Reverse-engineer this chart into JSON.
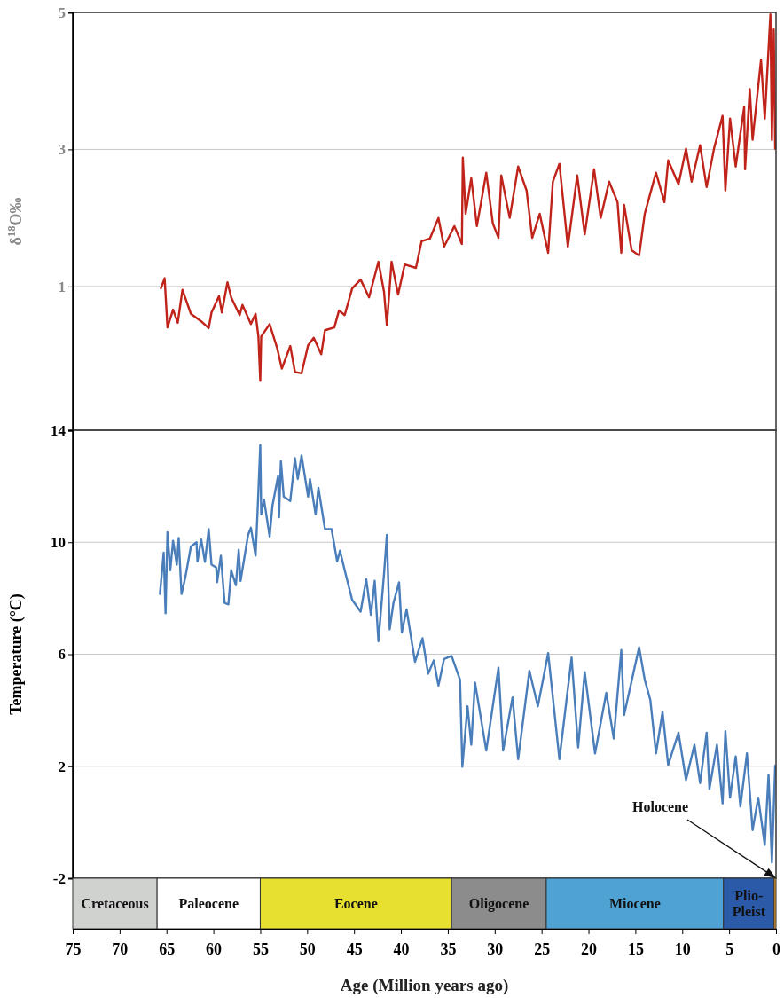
{
  "chart_data": [
    {
      "type": "line",
      "ylabel": "δ$^{18}$O‰",
      "xlim": [
        75,
        0
      ],
      "ylim": [
        -1.1,
        5
      ],
      "yticks": [
        1,
        3,
        5
      ],
      "tick_labels": "y",
      "grid": "y",
      "x": [
        65.6,
        65.2,
        64.9,
        64.3,
        63.8,
        63.3,
        62.4,
        61.3,
        60.5,
        60.2,
        59.4,
        59.1,
        58.5,
        58.1,
        57.2,
        56.9,
        56.0,
        55.5,
        55.2,
        55.0,
        54.9,
        54.0,
        53.2,
        52.7,
        51.8,
        51.3,
        50.6,
        49.9,
        49.3,
        48.5,
        48.1,
        47.1,
        46.6,
        46.0,
        45.2,
        44.3,
        43.4,
        42.4,
        41.8,
        41.5,
        41.0,
        40.3,
        39.6,
        38.4,
        37.8,
        36.9,
        36.0,
        35.4,
        34.3,
        33.5,
        33.4,
        33.1,
        32.5,
        31.9,
        30.9,
        30.2,
        29.6,
        29.3,
        28.4,
        27.5,
        26.6,
        26.0,
        25.2,
        24.3,
        23.8,
        23.1,
        22.2,
        21.2,
        20.4,
        19.4,
        18.7,
        17.8,
        16.9,
        16.5,
        16.2,
        15.4,
        14.6,
        14.0,
        12.8,
        11.9,
        11.5,
        10.4,
        9.6,
        9.0,
        8.1,
        7.4,
        6.6,
        5.7,
        5.4,
        4.9,
        4.3,
        3.4,
        3.3,
        2.8,
        2.5,
        1.6,
        1.2,
        0.6,
        0.44,
        0.24,
        0.09
      ],
      "series": [
        {
          "color": "#c0231a",
          "values": [
            0.97,
            1.12,
            0.4,
            0.66,
            0.47,
            0.95,
            0.6,
            0.49,
            0.39,
            0.62,
            0.86,
            0.62,
            1.06,
            0.84,
            0.58,
            0.73,
            0.45,
            0.6,
            0.27,
            -0.38,
            0.27,
            0.45,
            0.1,
            -0.2,
            0.13,
            -0.25,
            -0.27,
            0.14,
            0.25,
            0.01,
            0.36,
            0.4,
            0.65,
            0.58,
            0.97,
            1.1,
            0.84,
            1.36,
            0.92,
            0.43,
            1.36,
            0.88,
            1.32,
            1.27,
            1.66,
            1.7,
            2.0,
            1.58,
            1.88,
            1.62,
            2.88,
            2.06,
            2.58,
            1.88,
            2.66,
            1.92,
            1.71,
            2.62,
            2.0,
            2.75,
            2.4,
            1.71,
            2.06,
            1.49,
            2.53,
            2.79,
            1.58,
            2.62,
            1.76,
            2.71,
            2.0,
            2.53,
            2.23,
            1.49,
            2.19,
            1.53,
            1.45,
            2.06,
            2.66,
            2.23,
            2.84,
            2.49,
            3.01,
            2.53,
            3.06,
            2.45,
            3.02,
            3.49,
            2.4,
            3.45,
            2.75,
            3.62,
            2.71,
            3.88,
            3.14,
            4.31,
            3.45,
            4.97,
            3.14,
            4.75,
            3.01
          ]
        }
      ]
    },
    {
      "type": "line",
      "ylabel": "Temperature (°C)",
      "xlim": [
        75,
        0
      ],
      "ylim": [
        -2,
        14
      ],
      "yticks": [
        -2,
        2,
        6,
        10,
        14
      ],
      "tick_labels": "y",
      "grid": "y",
      "x": [
        65.7,
        65.3,
        65.1,
        64.9,
        64.6,
        64.3,
        63.9,
        63.7,
        63.4,
        63.0,
        62.4,
        61.8,
        61.7,
        61.3,
        60.9,
        60.5,
        60.2,
        59.7,
        59.6,
        59.2,
        58.8,
        58.4,
        58.1,
        57.6,
        57.3,
        57.1,
        56.3,
        56.0,
        55.5,
        55.3,
        55.0,
        54.9,
        54.6,
        54.0,
        53.7,
        53.1,
        53.0,
        52.8,
        52.5,
        51.8,
        51.3,
        51.0,
        50.6,
        49.9,
        49.7,
        49.1,
        48.8,
        48.1,
        47.4,
        46.8,
        46.5,
        46.0,
        45.2,
        44.3,
        43.7,
        43.2,
        42.8,
        42.4,
        41.8,
        41.5,
        41.2,
        40.8,
        40.2,
        39.9,
        39.4,
        38.5,
        37.7,
        37.1,
        36.5,
        36.0,
        35.4,
        34.6,
        33.7,
        33.45,
        32.9,
        32.5,
        32.1,
        30.9,
        29.6,
        29.1,
        28.1,
        27.5,
        26.3,
        25.4,
        24.3,
        23.1,
        21.8,
        21.1,
        20.4,
        19.3,
        18.1,
        17.3,
        16.5,
        16.2,
        14.6,
        14.0,
        13.4,
        12.8,
        12.1,
        11.5,
        10.4,
        9.6,
        8.7,
        8.1,
        7.4,
        7.1,
        6.3,
        5.7,
        5.4,
        4.9,
        4.3,
        3.8,
        3.1,
        2.5,
        1.9,
        1.2,
        0.8,
        0.44,
        0.09
      ],
      "series": [
        {
          "color": "#4a7ebb",
          "values": [
            8.15,
            9.63,
            7.46,
            10.36,
            9.0,
            10.05,
            9.2,
            10.15,
            8.15,
            8.73,
            9.84,
            10.0,
            9.31,
            10.1,
            9.3,
            10.47,
            9.2,
            9.1,
            8.57,
            9.52,
            7.83,
            7.78,
            9.0,
            8.47,
            9.73,
            8.62,
            10.26,
            10.52,
            9.52,
            11.0,
            13.47,
            11.0,
            11.52,
            10.2,
            11.31,
            12.37,
            10.89,
            12.9,
            11.63,
            11.47,
            13.0,
            12.26,
            13.1,
            11.63,
            12.26,
            11.0,
            11.94,
            10.47,
            10.47,
            9.31,
            9.7,
            9.0,
            7.94,
            7.52,
            8.68,
            7.41,
            8.62,
            6.46,
            8.89,
            10.26,
            6.89,
            7.83,
            8.57,
            6.78,
            7.6,
            5.73,
            6.57,
            5.3,
            5.78,
            4.88,
            5.83,
            5.94,
            5.09,
            1.98,
            4.14,
            2.77,
            4.99,
            2.56,
            5.52,
            2.56,
            4.46,
            2.25,
            5.41,
            4.14,
            6.04,
            2.25,
            5.88,
            2.67,
            5.36,
            2.46,
            4.62,
            2.99,
            6.15,
            3.83,
            6.25,
            5.09,
            4.36,
            2.46,
            3.94,
            2.04,
            3.2,
            1.51,
            2.77,
            1.4,
            3.2,
            1.19,
            2.77,
            0.67,
            3.25,
            0.88,
            2.35,
            0.56,
            2.46,
            -0.28,
            0.88,
            -0.81,
            1.7,
            -1.44,
            2.02
          ]
        }
      ]
    },
    {
      "type": "bar",
      "orientation": "horizontal",
      "xlabel": "Age (Million years ago)",
      "xlim": [
        75,
        0
      ],
      "xticks": [
        75,
        70,
        65,
        60,
        55,
        50,
        45,
        40,
        35,
        30,
        25,
        20,
        15,
        10,
        5,
        0
      ],
      "tick_labels": "x",
      "categories": [
        null
      ],
      "series": [
        {
          "name": "Cretaceous",
          "color": "#d0d2d0",
          "values": [
            9
          ],
          "base": [
            66
          ]
        },
        {
          "name": "Paleocene",
          "color": "#ffffff",
          "values": [
            11
          ],
          "base": [
            55
          ]
        },
        {
          "name": "Eocene",
          "color": "#e8e030",
          "values": [
            20.4
          ],
          "base": [
            34.6
          ]
        },
        {
          "name": "Oligocene",
          "color": "#8c8c8c",
          "values": [
            10.1
          ],
          "base": [
            24.5
          ]
        },
        {
          "name": "Miocene",
          "color": "#4fa3d4",
          "values": [
            18.9
          ],
          "base": [
            5.6
          ]
        },
        {
          "name": "Plio-Pleist",
          "color": "#2a5aa8",
          "values": [
            5.4
          ],
          "base": [
            0.2
          ]
        },
        {
          "color": "#f0a830",
          "values": [
            0.2
          ],
          "base": [
            0
          ]
        }
      ],
      "annotations": [
        "Holocene"
      ]
    }
  ]
}
